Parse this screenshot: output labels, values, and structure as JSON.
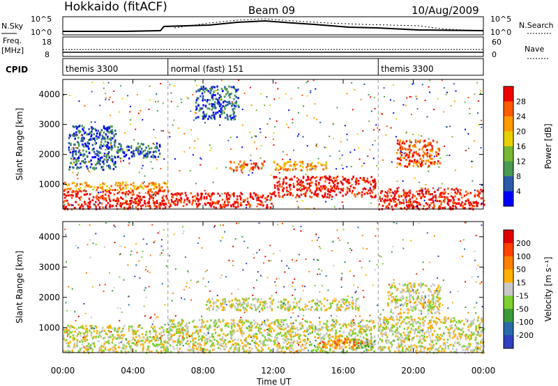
{
  "header": {
    "station": "Hokkaido (fitACF)",
    "beam": "Beam 09",
    "date": "10/Aug/2009"
  },
  "summary_panels": {
    "nsky_label": "N.Sky",
    "nsky_ticks": [
      "10^5",
      "10^0"
    ],
    "nsearch_label": "N.Search",
    "nsearch_ticks": [
      "10^5",
      "10^0"
    ],
    "freq_label_1": "Freq.",
    "freq_label_2": "[MHz]",
    "freq_ticks": [
      "18",
      "8"
    ],
    "nave_label": "Nave",
    "nave_ticks": [
      "60",
      "0"
    ],
    "cpid_label": "CPID"
  },
  "cpid_segments": [
    {
      "label": "themis 3300",
      "start_hour": 0
    },
    {
      "label": "normal (fast) 151",
      "start_hour": 6
    },
    {
      "label": "themis 3300",
      "start_hour": 18
    }
  ],
  "colors": {
    "power_scale": [
      "#0000ff",
      "#2a5aa8",
      "#4a9a50",
      "#74b834",
      "#e8d000",
      "#ff9a00",
      "#ff5a00",
      "#f00000"
    ],
    "velocity_scale": [
      "#3040c0",
      "#2a6aa8",
      "#3a9a3a",
      "#7cd030",
      "#c8c8c8",
      "#ffb000",
      "#ff7f00",
      "#ff4000",
      "#e00000"
    ]
  },
  "chart_data": [
    {
      "type": "heatmap",
      "title": "Power",
      "xlabel": "",
      "ylabel": "Slant Range [km]",
      "xlim": [
        0,
        24
      ],
      "ylim": [
        180,
        4500
      ],
      "x_ticks": [
        "00:00",
        "04:00",
        "08:00",
        "12:00",
        "16:00",
        "20:00",
        "00:00"
      ],
      "y_ticks": [
        "1000",
        "2000",
        "3000",
        "4000"
      ],
      "colorbar_label": "Power [dB]",
      "colorbar_ticks": [
        "4",
        "8",
        "12",
        "16",
        "20",
        "24",
        "28"
      ],
      "regions": [
        {
          "t0": 0.0,
          "t1": 6.0,
          "r0": 200,
          "r1": 850,
          "level": 7
        },
        {
          "t0": 0.0,
          "t1": 6.0,
          "r0": 850,
          "r1": 1100,
          "level": 5
        },
        {
          "t0": 0.3,
          "t1": 3.0,
          "r0": 1500,
          "r1": 3000,
          "level": 1
        },
        {
          "t0": 3.0,
          "t1": 5.5,
          "r0": 1900,
          "r1": 2400,
          "level": 1
        },
        {
          "t0": 6.0,
          "t1": 12.0,
          "r0": 250,
          "r1": 750,
          "level": 7
        },
        {
          "t0": 7.5,
          "t1": 10.0,
          "r0": 3200,
          "r1": 4300,
          "level": 1
        },
        {
          "t0": 9.5,
          "t1": 11.5,
          "r0": 1500,
          "r1": 1800,
          "level": 6
        },
        {
          "t0": 12.0,
          "t1": 17.8,
          "r0": 600,
          "r1": 1300,
          "level": 7
        },
        {
          "t0": 12.0,
          "t1": 15.0,
          "r0": 1500,
          "r1": 1800,
          "level": 5
        },
        {
          "t0": 18.0,
          "t1": 24.0,
          "r0": 200,
          "r1": 900,
          "level": 7
        },
        {
          "t0": 19.0,
          "t1": 21.5,
          "r0": 1600,
          "r1": 2500,
          "level": 6
        }
      ]
    },
    {
      "type": "heatmap",
      "title": "Velocity",
      "xlabel": "Time UT",
      "ylabel": "Slant Range [km]",
      "xlim": [
        0,
        24
      ],
      "ylim": [
        180,
        4500
      ],
      "x_ticks": [
        "00:00",
        "04:00",
        "08:00",
        "12:00",
        "16:00",
        "20:00",
        "00:00"
      ],
      "y_ticks": [
        "1000",
        "2000",
        "3000",
        "4000"
      ],
      "colorbar_label": "Velocity [m s⁻¹]",
      "colorbar_ticks": [
        "200",
        "100",
        "50",
        "15",
        "-15",
        "-50",
        "-100",
        "-200"
      ],
      "regions": [
        {
          "t0": 0.0,
          "t1": 6.0,
          "r0": 200,
          "r1": 1100,
          "level": 4
        },
        {
          "t0": 6.0,
          "t1": 17.8,
          "r0": 200,
          "r1": 1300,
          "level": 4
        },
        {
          "t0": 14.5,
          "t1": 17.5,
          "r0": 350,
          "r1": 650,
          "level": 6
        },
        {
          "t0": 16.5,
          "t1": 17.8,
          "r0": 350,
          "r1": 650,
          "level": 3
        },
        {
          "t0": 8.0,
          "t1": 17.0,
          "r0": 1600,
          "r1": 2000,
          "level": 4
        },
        {
          "t0": 18.0,
          "t1": 24.0,
          "r0": 200,
          "r1": 1400,
          "level": 4
        },
        {
          "t0": 18.5,
          "t1": 21.5,
          "r0": 1500,
          "r1": 2500,
          "level": 4
        }
      ]
    }
  ]
}
